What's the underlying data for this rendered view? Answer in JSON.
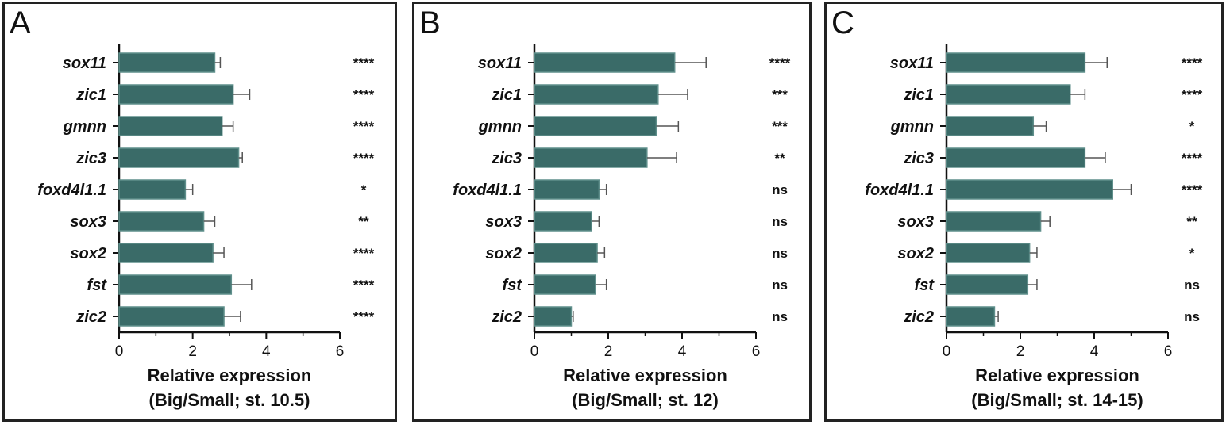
{
  "colors": {
    "bar": "#3a6b68",
    "bar_edge": "#5f8f8b",
    "axis": "#111111",
    "frame": "#222222"
  },
  "chart_data": [
    {
      "type": "bar",
      "orientation": "horizontal",
      "panel_label": "A",
      "xlabel": "Relative expression",
      "xlabel2": "(Big/Small; st. 10.5)",
      "categories": [
        "sox11",
        "zic1",
        "gmnn",
        "zic3",
        "foxd4l1.1",
        "sox3",
        "sox2",
        "fst",
        "zic2"
      ],
      "values": [
        2.6,
        3.1,
        2.8,
        3.25,
        1.8,
        2.3,
        2.55,
        3.05,
        2.85
      ],
      "errors": [
        0.15,
        0.45,
        0.3,
        0.1,
        0.2,
        0.3,
        0.3,
        0.55,
        0.45
      ],
      "significance": [
        "****",
        "****",
        "****",
        "****",
        "*",
        "**",
        "****",
        "****",
        "****"
      ],
      "xlim": [
        0,
        6
      ],
      "xticks": [
        0,
        2,
        4,
        6
      ]
    },
    {
      "type": "bar",
      "orientation": "horizontal",
      "panel_label": "B",
      "xlabel": "Relative expression",
      "xlabel2": "(Big/Small; st. 12)",
      "categories": [
        "sox11",
        "zic1",
        "gmnn",
        "zic3",
        "foxd4l1.1",
        "sox3",
        "sox2",
        "fst",
        "zic2"
      ],
      "values": [
        3.8,
        3.35,
        3.3,
        3.05,
        1.75,
        1.55,
        1.7,
        1.65,
        1.0
      ],
      "errors": [
        0.85,
        0.8,
        0.6,
        0.8,
        0.2,
        0.2,
        0.2,
        0.3,
        0.05
      ],
      "significance": [
        "****",
        "***",
        "***",
        "**",
        "ns",
        "ns",
        "ns",
        "ns",
        "ns"
      ],
      "xlim": [
        0,
        6
      ],
      "xticks": [
        0,
        2,
        4,
        6
      ]
    },
    {
      "type": "bar",
      "orientation": "horizontal",
      "panel_label": "C",
      "xlabel": "Relative expression",
      "xlabel2": "(Big/Small; st. 14-15)",
      "categories": [
        "sox11",
        "zic1",
        "gmnn",
        "zic3",
        "foxd4l1.1",
        "sox3",
        "sox2",
        "fst",
        "zic2"
      ],
      "values": [
        3.75,
        3.35,
        2.35,
        3.75,
        4.5,
        2.55,
        2.25,
        2.2,
        1.3
      ],
      "errors": [
        0.6,
        0.4,
        0.35,
        0.55,
        0.5,
        0.25,
        0.2,
        0.25,
        0.1
      ],
      "significance": [
        "****",
        "****",
        "*",
        "****",
        "****",
        "**",
        "*",
        "ns",
        "ns"
      ],
      "xlim": [
        0,
        6
      ],
      "xticks": [
        0,
        2,
        4,
        6
      ]
    }
  ]
}
